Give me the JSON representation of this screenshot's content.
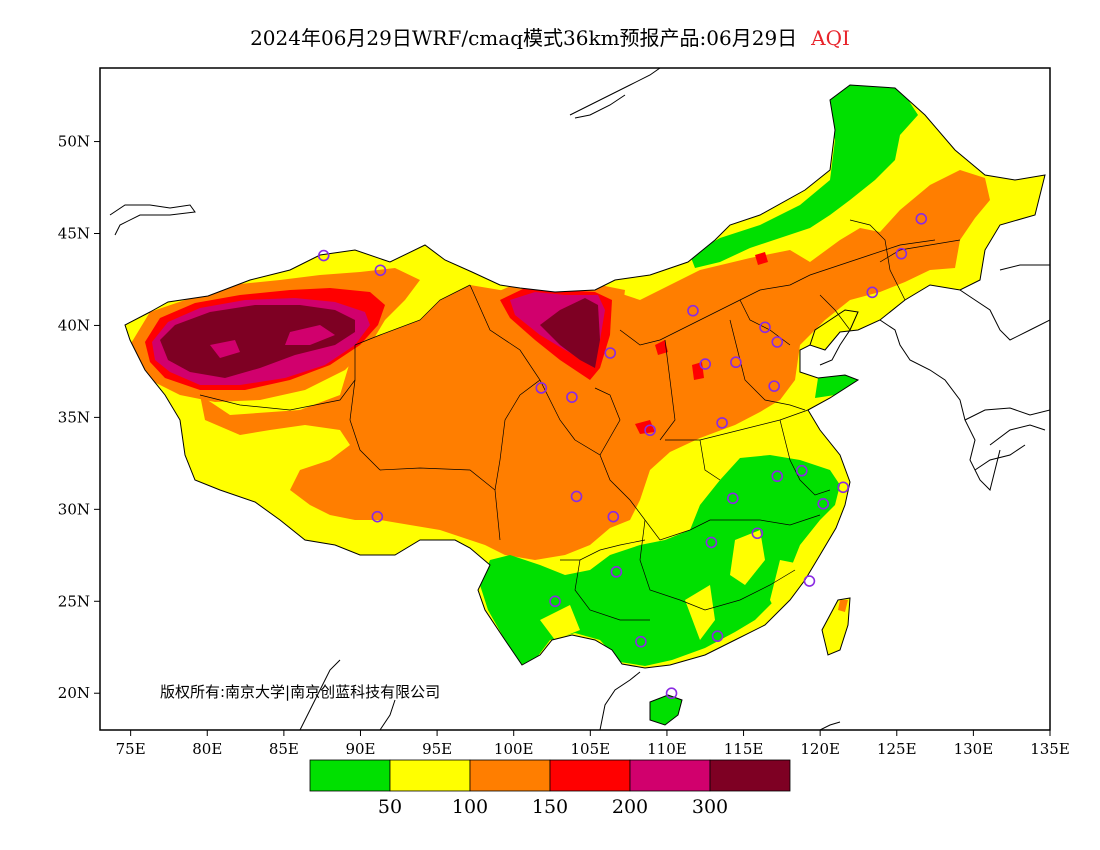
{
  "title": {
    "main": "2024年06月29日WRF/cmaq模式36km预报产品:06月29日",
    "variable": "AQI",
    "variable_color": "#e8242b"
  },
  "copyright": "版权所有:南京大学|南京创蓝科技有限公司",
  "axes": {
    "lon_labels": [
      "75E",
      "80E",
      "85E",
      "90E",
      "95E",
      "100E",
      "105E",
      "110E",
      "115E",
      "120E",
      "125E",
      "130E",
      "135E"
    ],
    "lat_labels": [
      "50N",
      "45N",
      "40N",
      "35N",
      "30N",
      "25N",
      "20N"
    ],
    "lon_range": [
      73,
      135
    ],
    "lat_range": [
      18,
      54
    ]
  },
  "legend": {
    "colors": [
      "#00e000",
      "#ffff00",
      "#ff7e00",
      "#ff0000",
      "#d1006d",
      "#7e0023"
    ],
    "labels": [
      "50",
      "100",
      "150",
      "200",
      "300"
    ]
  },
  "map_colors": {
    "good": "#00e000",
    "moderate": "#ffff00",
    "unhealthy_sensitive": "#ff7e00",
    "unhealthy": "#ff0000",
    "very_unhealthy": "#d1006d",
    "hazardous": "#7e0023",
    "station_marker": "#8a2be2",
    "background": "#ffffff"
  },
  "stations": [
    {
      "lon": 87.6,
      "lat": 43.8
    },
    {
      "lon": 91.1,
      "lat": 29.6
    },
    {
      "lon": 101.8,
      "lat": 36.6
    },
    {
      "lon": 103.8,
      "lat": 36.1
    },
    {
      "lon": 106.3,
      "lat": 38.5
    },
    {
      "lon": 104.1,
      "lat": 30.7
    },
    {
      "lon": 106.5,
      "lat": 29.6
    },
    {
      "lon": 106.7,
      "lat": 26.6
    },
    {
      "lon": 102.7,
      "lat": 25.0
    },
    {
      "lon": 108.3,
      "lat": 22.8
    },
    {
      "lon": 110.3,
      "lat": 20.0
    },
    {
      "lon": 113.3,
      "lat": 23.1
    },
    {
      "lon": 112.9,
      "lat": 28.2
    },
    {
      "lon": 114.3,
      "lat": 30.6
    },
    {
      "lon": 115.9,
      "lat": 28.7
    },
    {
      "lon": 117.2,
      "lat": 31.8
    },
    {
      "lon": 118.8,
      "lat": 32.1
    },
    {
      "lon": 120.2,
      "lat": 30.3
    },
    {
      "lon": 121.5,
      "lat": 31.2
    },
    {
      "lon": 119.3,
      "lat": 26.1
    },
    {
      "lon": 108.9,
      "lat": 34.3
    },
    {
      "lon": 113.6,
      "lat": 34.7
    },
    {
      "lon": 117.0,
      "lat": 36.7
    },
    {
      "lon": 112.5,
      "lat": 37.9
    },
    {
      "lon": 114.5,
      "lat": 38.0
    },
    {
      "lon": 116.4,
      "lat": 39.9
    },
    {
      "lon": 117.2,
      "lat": 39.1
    },
    {
      "lon": 111.7,
      "lat": 40.8
    },
    {
      "lon": 123.4,
      "lat": 41.8
    },
    {
      "lon": 125.3,
      "lat": 43.9
    },
    {
      "lon": 126.6,
      "lat": 45.8
    },
    {
      "lon": 91.3,
      "lat": 43.0
    }
  ]
}
